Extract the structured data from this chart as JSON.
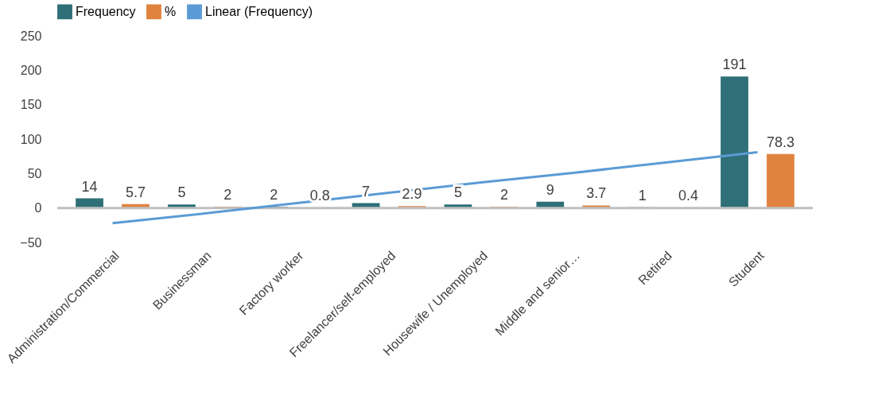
{
  "chart_data": {
    "type": "bar",
    "categories": [
      "Administration/Commercial",
      "Businessman",
      "Factory worker",
      "Freelancer/self-employed",
      "Housewife / Unemployed",
      "Middle and senior…",
      "Retired",
      "Student"
    ],
    "series": [
      {
        "name": "Frequency",
        "color": "#2f6f78",
        "values": [
          14,
          5,
          2,
          7,
          5,
          9,
          1,
          191
        ],
        "value_labels": [
          "14",
          "5",
          "2",
          "7",
          "5",
          "9",
          "1",
          "191"
        ]
      },
      {
        "name": "%",
        "color": "#e0833f",
        "values": [
          5.7,
          2,
          0.8,
          2.9,
          2,
          3.7,
          0.4,
          78.3
        ],
        "value_labels": [
          "5.7",
          "2",
          "0.8",
          "2.9",
          "2",
          "3.7",
          "0.4",
          "78.3"
        ]
      },
      {
        "name": "Linear (Frequency)",
        "type": "line",
        "color": "#5b9bd5",
        "values": [
          -22,
          -8,
          7,
          22,
          37,
          51,
          66,
          81
        ]
      }
    ],
    "ylim": [
      -50,
      250
    ],
    "yticks": [
      -50,
      0,
      50,
      100,
      150,
      200,
      250
    ],
    "legend": "top"
  }
}
